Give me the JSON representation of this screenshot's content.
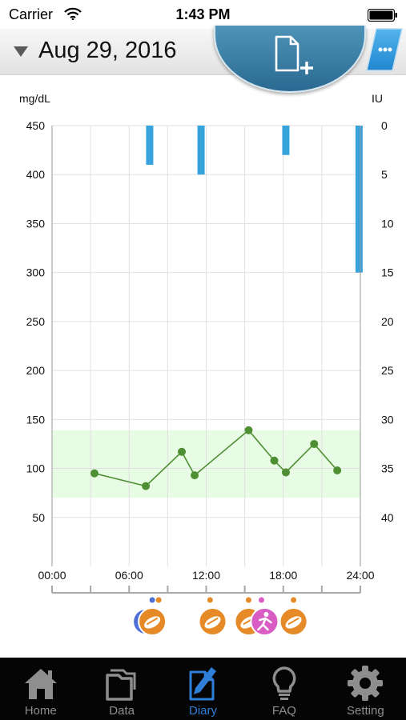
{
  "status_bar": {
    "carrier": "Carrier",
    "time": "1:43 PM"
  },
  "header": {
    "date": "Aug 29, 2016",
    "new_entry_icon": "new-document-icon",
    "more_icon": "ellipsis-icon"
  },
  "chart_data": {
    "type": "line",
    "ylabel": "mg/dL",
    "y2label": "IU",
    "xlim": [
      "00:00",
      "24:00"
    ],
    "ylim": [
      0,
      450
    ],
    "y2lim": [
      0,
      45
    ],
    "y2_inverted": true,
    "x_ticks": [
      "00:00",
      "06:00",
      "12:00",
      "18:00",
      "24:00"
    ],
    "y_ticks": [
      "50",
      "100",
      "150",
      "200",
      "250",
      "300",
      "350",
      "400",
      "450"
    ],
    "y_tick_values": [
      50,
      100,
      150,
      200,
      250,
      300,
      350,
      400,
      450
    ],
    "y2_ticks": [
      "0",
      "5",
      "10",
      "15",
      "20",
      "25",
      "30",
      "35",
      "40"
    ],
    "y2_tick_values": [
      0,
      5,
      10,
      15,
      20,
      25,
      30,
      35,
      40
    ],
    "target_range": [
      70,
      139
    ],
    "target_range_color": "#e8fbe4",
    "series": [
      {
        "type": "line",
        "color": "#4f8f34",
        "x": [
          3.3,
          7.3,
          10.1,
          11.1,
          15.3,
          17.3,
          18.2,
          20.4,
          22.2
        ],
        "y": [
          95,
          82,
          117,
          93,
          139,
          108,
          96,
          125,
          98
        ]
      },
      {
        "type": "bar",
        "axis": "IU",
        "color": "#36a3dc",
        "x": [
          7.6,
          11.6,
          18.2,
          23.9
        ],
        "y": [
          4,
          5,
          3,
          15
        ]
      }
    ],
    "event_markers": [
      {
        "x": 7.8,
        "icons": [
          "meal-icon"
        ],
        "dots": [
          {
            "x": 7.8,
            "color": "#4f6fd8"
          },
          {
            "x": 8.3,
            "color": "#e58a26"
          }
        ]
      },
      {
        "x": 12.5,
        "icons": [
          "meal-icon"
        ],
        "dots": [
          {
            "x": 12.3,
            "color": "#e58a26"
          }
        ]
      },
      {
        "x": 15.3,
        "icons": [
          "meal-icon",
          "exercise-icon"
        ],
        "dots": [
          {
            "x": 15.3,
            "color": "#e58a26"
          },
          {
            "x": 16.3,
            "color": "#d85cc4"
          }
        ]
      },
      {
        "x": 18.8,
        "icons": [
          "meal-icon"
        ],
        "dots": [
          {
            "x": 18.8,
            "color": "#e58a26"
          }
        ]
      }
    ]
  },
  "tab_bar": {
    "tabs": [
      {
        "label": "Home",
        "icon": "home-icon",
        "active": false
      },
      {
        "label": "Data",
        "icon": "data-folders-icon",
        "active": false
      },
      {
        "label": "Diary",
        "icon": "diary-icon",
        "active": true
      },
      {
        "label": "FAQ",
        "icon": "lightbulb-icon",
        "active": false
      },
      {
        "label": "Setting",
        "icon": "gear-icon",
        "active": false
      }
    ]
  }
}
